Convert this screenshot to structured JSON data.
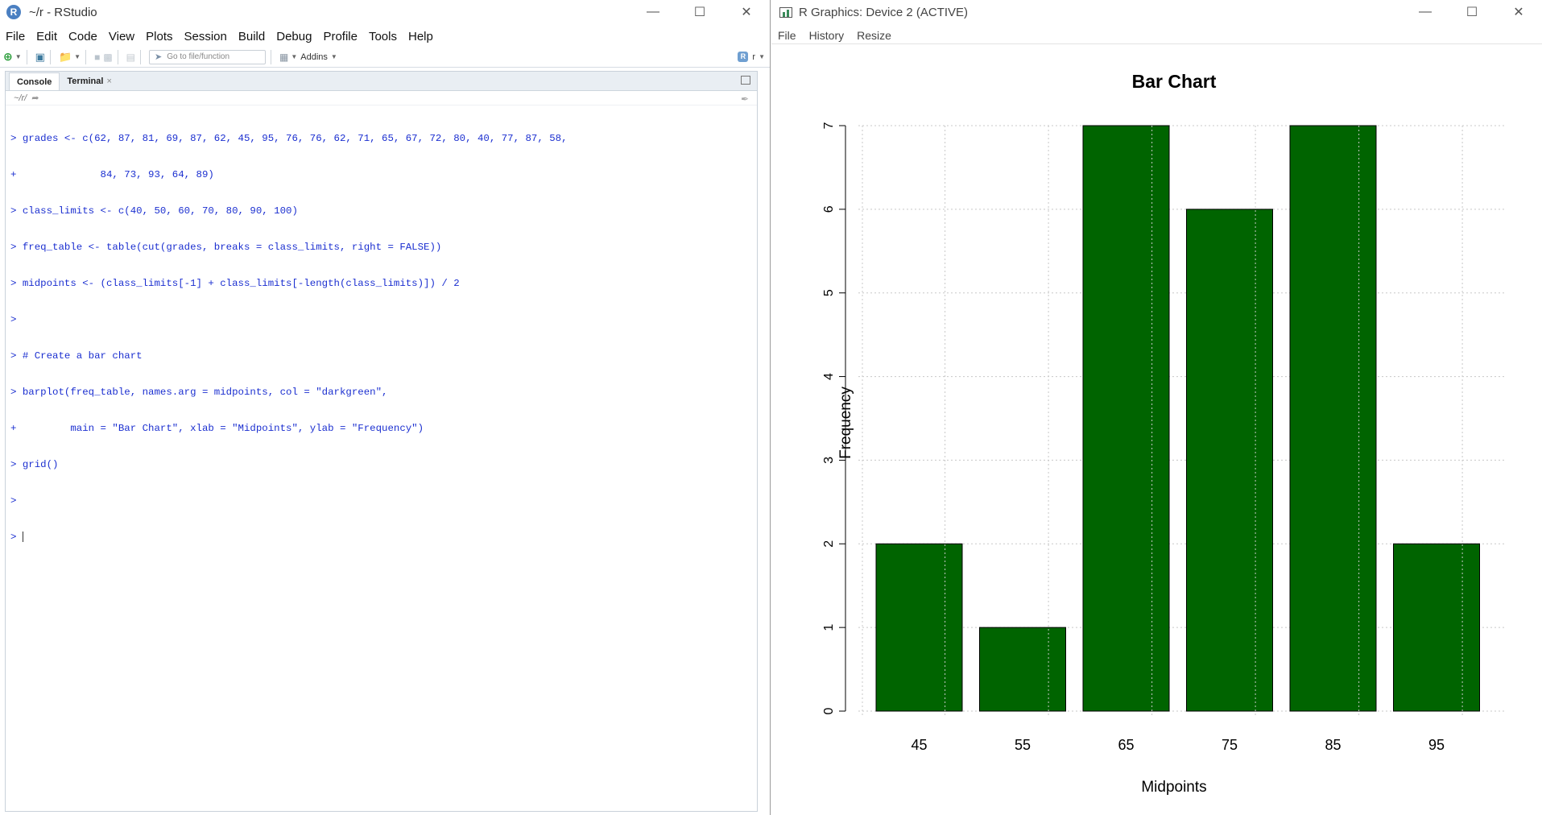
{
  "rstudio": {
    "title": "~/r - RStudio",
    "logo": "R",
    "menu": [
      "File",
      "Edit",
      "Code",
      "View",
      "Plots",
      "Session",
      "Build",
      "Debug",
      "Profile",
      "Tools",
      "Help"
    ],
    "toolbar": {
      "goto_placeholder": "Go to file/function",
      "addins_label": "Addins",
      "project_label": "r"
    },
    "tabs": {
      "console": "Console",
      "terminal": "Terminal"
    },
    "path": "~/r/",
    "console_lines": [
      "> grades <- c(62, 87, 81, 69, 87, 62, 45, 95, 76, 76, 62, 71, 65, 67, 72, 80, 40, 77, 87, 58,",
      "+              84, 73, 93, 64, 89)",
      "> class_limits <- c(40, 50, 60, 70, 80, 90, 100)",
      "> freq_table <- table(cut(grades, breaks = class_limits, right = FALSE))",
      "> midpoints <- (class_limits[-1] + class_limits[-length(class_limits)]) / 2",
      ">",
      "> # Create a bar chart",
      "> barplot(freq_table, names.arg = midpoints, col = \"darkgreen\",",
      "+         main = \"Bar Chart\", xlab = \"Midpoints\", ylab = \"Frequency\")",
      "> grid()",
      ">",
      "> "
    ]
  },
  "rgraphics": {
    "title": "R Graphics: Device 2 (ACTIVE)",
    "menu": [
      "File",
      "History",
      "Resize"
    ]
  },
  "chart_data": {
    "type": "bar",
    "title": "Bar Chart",
    "xlabel": "Midpoints",
    "ylabel": "Frequency",
    "categories": [
      "45",
      "55",
      "65",
      "75",
      "85",
      "95"
    ],
    "values": [
      2,
      1,
      7,
      6,
      7,
      2
    ],
    "ylim": [
      0,
      7
    ],
    "yticks": [
      0,
      1,
      2,
      3,
      4,
      5,
      6,
      7
    ],
    "grid": true,
    "bar_color": "#006400"
  }
}
